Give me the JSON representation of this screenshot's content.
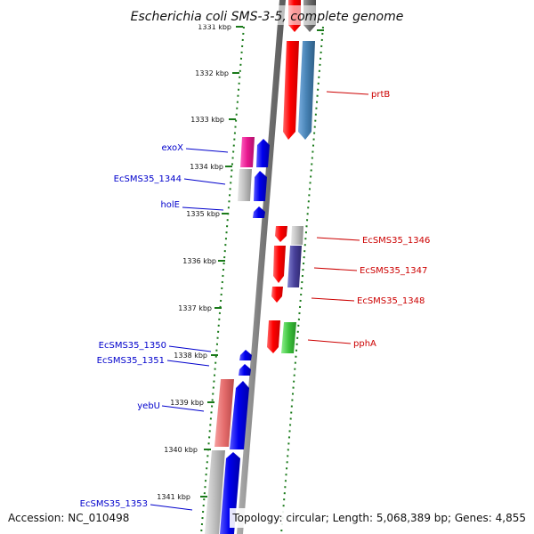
{
  "header": {
    "title": "Escherichia coli SMS-3-5, complete genome"
  },
  "footer": {
    "accession": "Accession: NC_010498",
    "topology": "Topology: circular; Length: 5,068,389 bp; Genes: 4,855"
  },
  "scale": {
    "ticks": [
      "1331 kbp",
      "1332 kbp",
      "1333 kbp",
      "1334 kbp",
      "1335 kbp",
      "1336 kbp",
      "1337 kbp",
      "1338 kbp",
      "1339 kbp",
      "1340 kbp",
      "1341 kbp"
    ]
  },
  "genes": {
    "left": [
      {
        "label": "exoX",
        "color": "#0000cc"
      },
      {
        "label": "EcSMS35_1344",
        "color": "#0000cc"
      },
      {
        "label": "holE",
        "color": "#0000cc"
      },
      {
        "label": "EcSMS35_1350",
        "color": "#0000cc"
      },
      {
        "label": "EcSMS35_1351",
        "color": "#0000cc"
      },
      {
        "label": "yebU",
        "color": "#0000cc"
      },
      {
        "label": "EcSMS35_1353",
        "color": "#0000cc"
      }
    ],
    "right": [
      {
        "label": "prtB",
        "color": "#cc0000"
      },
      {
        "label": "EcSMS35_1346",
        "color": "#cc0000"
      },
      {
        "label": "EcSMS35_1347",
        "color": "#cc0000"
      },
      {
        "label": "EcSMS35_1348",
        "color": "#cc0000"
      },
      {
        "label": "pphA",
        "color": "#cc0000"
      }
    ]
  },
  "colors": {
    "forward_strand": "#ff0000",
    "reverse_strand": "#0000ee",
    "backbone": "#888888",
    "tick": "#1a7a1a"
  }
}
